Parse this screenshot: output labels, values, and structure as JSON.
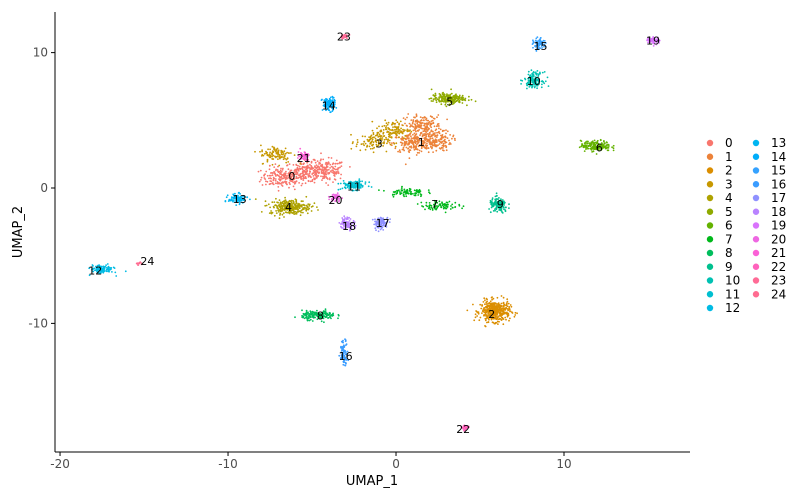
{
  "chart_data": {
    "type": "scatter",
    "title": "",
    "xlabel": "UMAP_1",
    "ylabel": "UMAP_2",
    "xlim": [
      -20.3,
      17.5
    ],
    "ylim": [
      -19.5,
      13
    ],
    "x_ticks": [
      {
        "value": -20,
        "label": "-20"
      },
      {
        "value": -10,
        "label": "-10"
      },
      {
        "value": 0,
        "label": "0"
      },
      {
        "value": 10,
        "label": "10"
      }
    ],
    "y_ticks": [
      {
        "value": 10,
        "label": "10"
      },
      {
        "value": 0,
        "label": "0"
      },
      {
        "value": -10,
        "label": "-10"
      }
    ],
    "grid": false,
    "legend_position": "right",
    "clusters": [
      {
        "id": "0",
        "color": "#F8766D",
        "label_x": -6.2,
        "label_y": 0.9,
        "centers": [
          [
            -6.8,
            0.8
          ],
          [
            -5.4,
            1.2
          ],
          [
            -4.2,
            1.3
          ]
        ],
        "spread": [
          1.1,
          0.7
        ],
        "n": 520
      },
      {
        "id": "1",
        "color": "#EC8239",
        "label_x": 1.5,
        "label_y": 3.4,
        "centers": [
          [
            0.9,
            3.3
          ],
          [
            2.2,
            3.5
          ],
          [
            1.6,
            4.6
          ]
        ],
        "spread": [
          1.0,
          0.7
        ],
        "n": 520
      },
      {
        "id": "2",
        "color": "#DB8E00",
        "label_x": 5.7,
        "label_y": -9.3,
        "centers": [
          [
            5.9,
            -9.1
          ]
        ],
        "spread": [
          0.8,
          0.7
        ],
        "n": 430
      },
      {
        "id": "3",
        "color": "#C79800",
        "label_x": -1.0,
        "label_y": 3.3,
        "centers": [
          [
            -1.4,
            3.4
          ],
          [
            -0.2,
            4.3
          ],
          [
            -7.1,
            2.5
          ]
        ],
        "spread": [
          0.9,
          0.6
        ],
        "n": 320
      },
      {
        "id": "4",
        "color": "#AEA200",
        "label_x": -6.4,
        "label_y": -1.4,
        "centers": [
          [
            -6.3,
            -1.4
          ]
        ],
        "spread": [
          1.1,
          0.5
        ],
        "n": 280
      },
      {
        "id": "5",
        "color": "#8FAA00",
        "label_x": 3.2,
        "label_y": 6.4,
        "centers": [
          [
            3.1,
            6.6
          ]
        ],
        "spread": [
          0.9,
          0.35
        ],
        "n": 220
      },
      {
        "id": "6",
        "color": "#64B200",
        "label_x": 12.1,
        "label_y": 3.0,
        "centers": [
          [
            11.9,
            3.1
          ]
        ],
        "spread": [
          0.8,
          0.35
        ],
        "n": 180
      },
      {
        "id": "7",
        "color": "#00B81B",
        "label_x": 2.3,
        "label_y": -1.2,
        "centers": [
          [
            2.6,
            -1.3
          ],
          [
            0.6,
            -0.3
          ]
        ],
        "spread": [
          1.0,
          0.3
        ],
        "n": 170
      },
      {
        "id": "8",
        "color": "#00BD5C",
        "label_x": -4.5,
        "label_y": -9.4,
        "centers": [
          [
            -4.6,
            -9.4
          ]
        ],
        "spread": [
          0.9,
          0.3
        ],
        "n": 170
      },
      {
        "id": "9",
        "color": "#00C08E",
        "label_x": 6.2,
        "label_y": -1.2,
        "centers": [
          [
            6.1,
            -1.3
          ]
        ],
        "spread": [
          0.5,
          0.5
        ],
        "n": 140
      },
      {
        "id": "10",
        "color": "#00C1B2",
        "label_x": 8.2,
        "label_y": 7.9,
        "centers": [
          [
            8.2,
            8.0
          ]
        ],
        "spread": [
          0.5,
          0.5
        ],
        "n": 140
      },
      {
        "id": "11",
        "color": "#00BFD0",
        "label_x": -2.5,
        "label_y": 0.1,
        "centers": [
          [
            -2.5,
            0.2
          ]
        ],
        "spread": [
          0.7,
          0.3
        ],
        "n": 120
      },
      {
        "id": "12",
        "color": "#00BBE4",
        "label_x": -17.9,
        "label_y": -6.1,
        "centers": [
          [
            -17.5,
            -6.0
          ]
        ],
        "spread": [
          0.6,
          0.3
        ],
        "n": 110
      },
      {
        "id": "13",
        "color": "#00B5F1",
        "label_x": -9.3,
        "label_y": -0.8,
        "centers": [
          [
            -9.4,
            -0.8
          ]
        ],
        "spread": [
          0.5,
          0.3
        ],
        "n": 100
      },
      {
        "id": "14",
        "color": "#00ADFA",
        "label_x": -4.0,
        "label_y": 6.1,
        "centers": [
          [
            -4.0,
            6.2
          ]
        ],
        "spread": [
          0.35,
          0.45
        ],
        "n": 110
      },
      {
        "id": "15",
        "color": "#35A2FF",
        "label_x": 8.6,
        "label_y": 10.5,
        "centers": [
          [
            8.5,
            10.6
          ]
        ],
        "spread": [
          0.3,
          0.4
        ],
        "n": 70
      },
      {
        "id": "16",
        "color": "#3A9CFF",
        "label_x": -3.0,
        "label_y": -12.4,
        "centers": [
          [
            -3.1,
            -12.1
          ]
        ],
        "spread": [
          0.2,
          0.8
        ],
        "n": 80
      },
      {
        "id": "17",
        "color": "#8F91FF",
        "label_x": -0.8,
        "label_y": -2.6,
        "centers": [
          [
            -0.9,
            -2.6
          ]
        ],
        "spread": [
          0.4,
          0.4
        ],
        "n": 90
      },
      {
        "id": "18",
        "color": "#B983FF",
        "label_x": -2.8,
        "label_y": -2.8,
        "centers": [
          [
            -2.9,
            -2.6
          ]
        ],
        "spread": [
          0.4,
          0.4
        ],
        "n": 90
      },
      {
        "id": "19",
        "color": "#D973FC",
        "label_x": 15.3,
        "label_y": 10.9,
        "centers": [
          [
            15.3,
            10.9
          ]
        ],
        "spread": [
          0.35,
          0.25
        ],
        "n": 60
      },
      {
        "id": "20",
        "color": "#EE67E2",
        "label_x": -3.6,
        "label_y": -0.9,
        "centers": [
          [
            -3.6,
            -0.7
          ]
        ],
        "spread": [
          0.3,
          0.3
        ],
        "n": 50
      },
      {
        "id": "21",
        "color": "#FB61D7",
        "label_x": -5.5,
        "label_y": 2.2,
        "centers": [
          [
            -5.5,
            2.4
          ]
        ],
        "spread": [
          0.3,
          0.3
        ],
        "n": 50
      },
      {
        "id": "22",
        "color": "#FF62BC",
        "label_x": 4.0,
        "label_y": -17.8,
        "centers": [
          [
            4.1,
            -17.7
          ]
        ],
        "spread": [
          0.2,
          0.2
        ],
        "n": 30
      },
      {
        "id": "23",
        "color": "#FF6B96",
        "label_x": -3.1,
        "label_y": 11.2,
        "centers": [
          [
            -3.1,
            11.2
          ]
        ],
        "spread": [
          0.25,
          0.15
        ],
        "n": 30
      },
      {
        "id": "24",
        "color": "#FF6C91",
        "label_x": -14.8,
        "label_y": -5.4,
        "centers": [
          [
            -15.3,
            -5.6
          ]
        ],
        "spread": [
          0.2,
          0.1
        ],
        "n": 10
      }
    ]
  }
}
